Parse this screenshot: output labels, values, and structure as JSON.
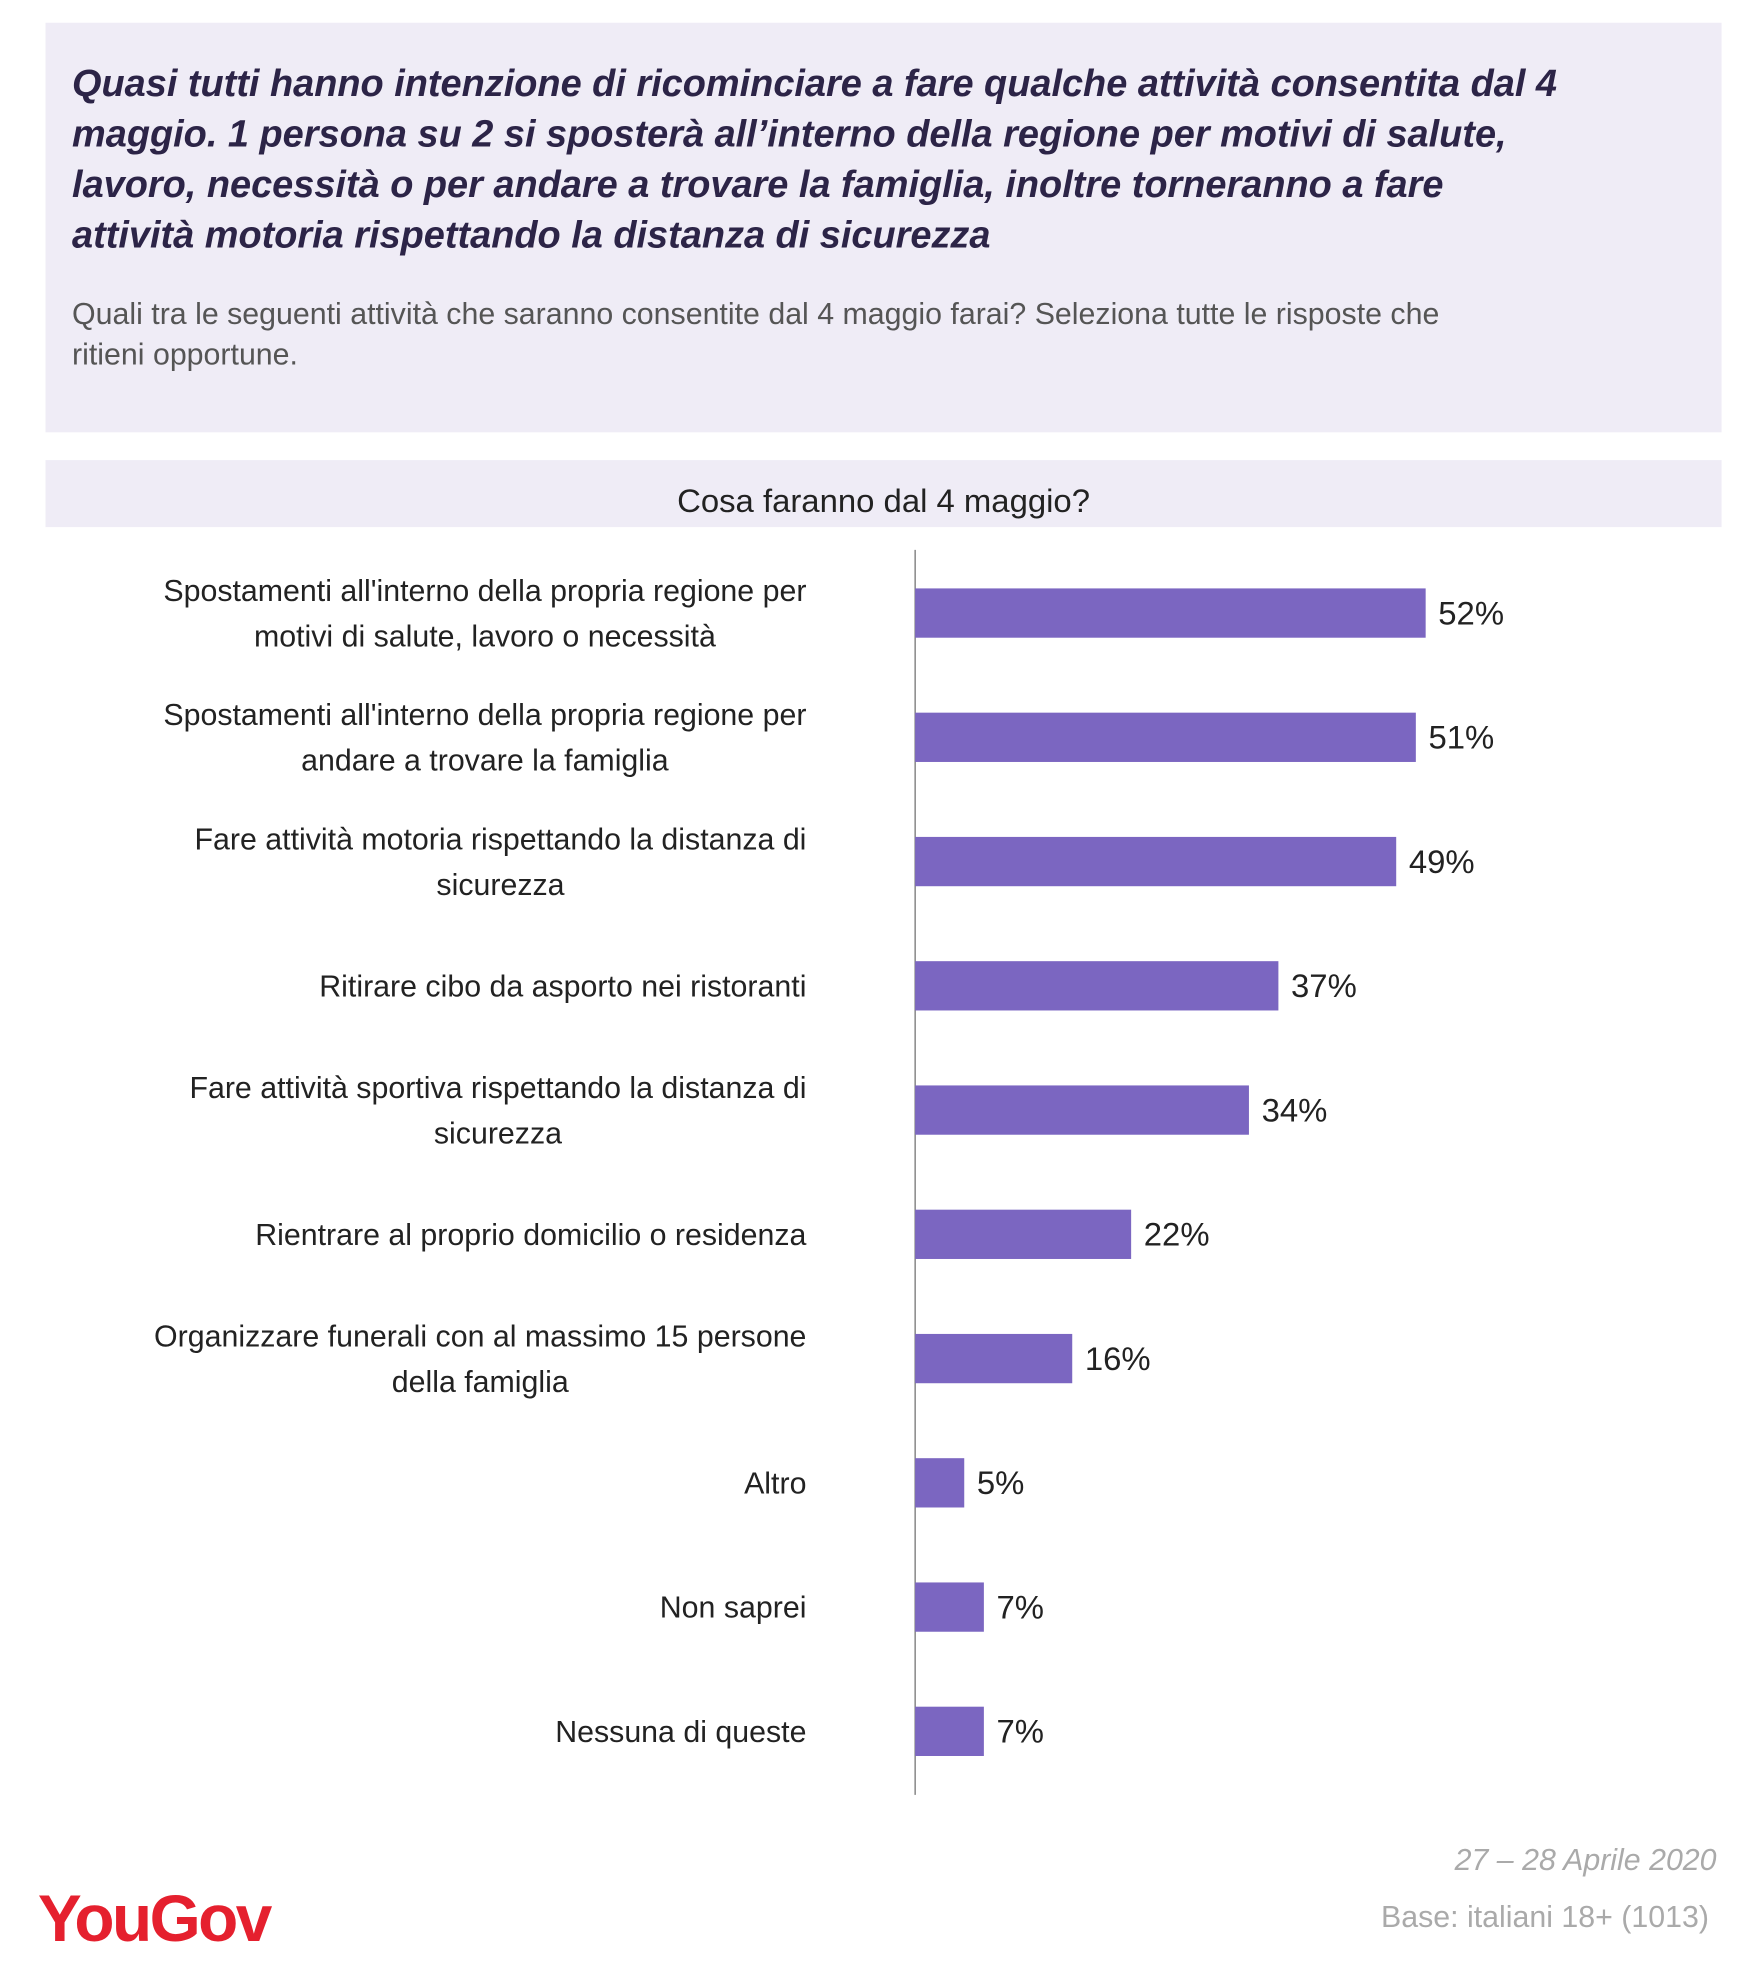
{
  "chart_data": {
    "type": "barh",
    "title": "Quasi tutti hanno intenzione di ricominciare a fare qualche attività consentita dal 4\nmaggio. 1 persona su 2 si sposterà all’interno della regione per motivi di salute,\nlavoro, necessità o per andare a trovare la famiglia, inoltre torneranno a fare\nattività motoria rispettando la distanza di sicurezza",
    "subtitle": "Quali tra le seguenti attività che saranno consentite dal 4 maggio farai? Seleziona tutte le risposte che\nritieni opportune.",
    "chart_title": "Cosa faranno dal 4 maggio?",
    "categories": [
      "Spostamenti all'interno della propria regione per\nmotivi di salute, lavoro o necessità",
      "Spostamenti all'interno della propria regione per\nandare a trovare la famiglia",
      "Fare attività motoria rispettando la distanza di\nsicurezza",
      "Ritirare cibo da asporto nei ristoranti",
      "Fare attività sportiva rispettando la distanza di\nsicurezza",
      "Rientrare al proprio domicilio o residenza",
      "Organizzare funerali con al massimo 15 persone\ndella famiglia",
      "Altro",
      "Non saprei",
      "Nessuna di queste"
    ],
    "values": [
      52,
      51,
      49,
      37,
      34,
      22,
      16,
      5,
      7,
      7
    ],
    "value_labels": [
      "52%",
      "51%",
      "49%",
      "37%",
      "34%",
      "22%",
      "16%",
      "5%",
      "7%",
      "7%"
    ],
    "color": "#7b66c1",
    "xlim": [
      0,
      60
    ],
    "date": "27 – 28 Aprile 2020",
    "base": "Base: italiani 18+ (1013)",
    "logo": "YouGov"
  }
}
